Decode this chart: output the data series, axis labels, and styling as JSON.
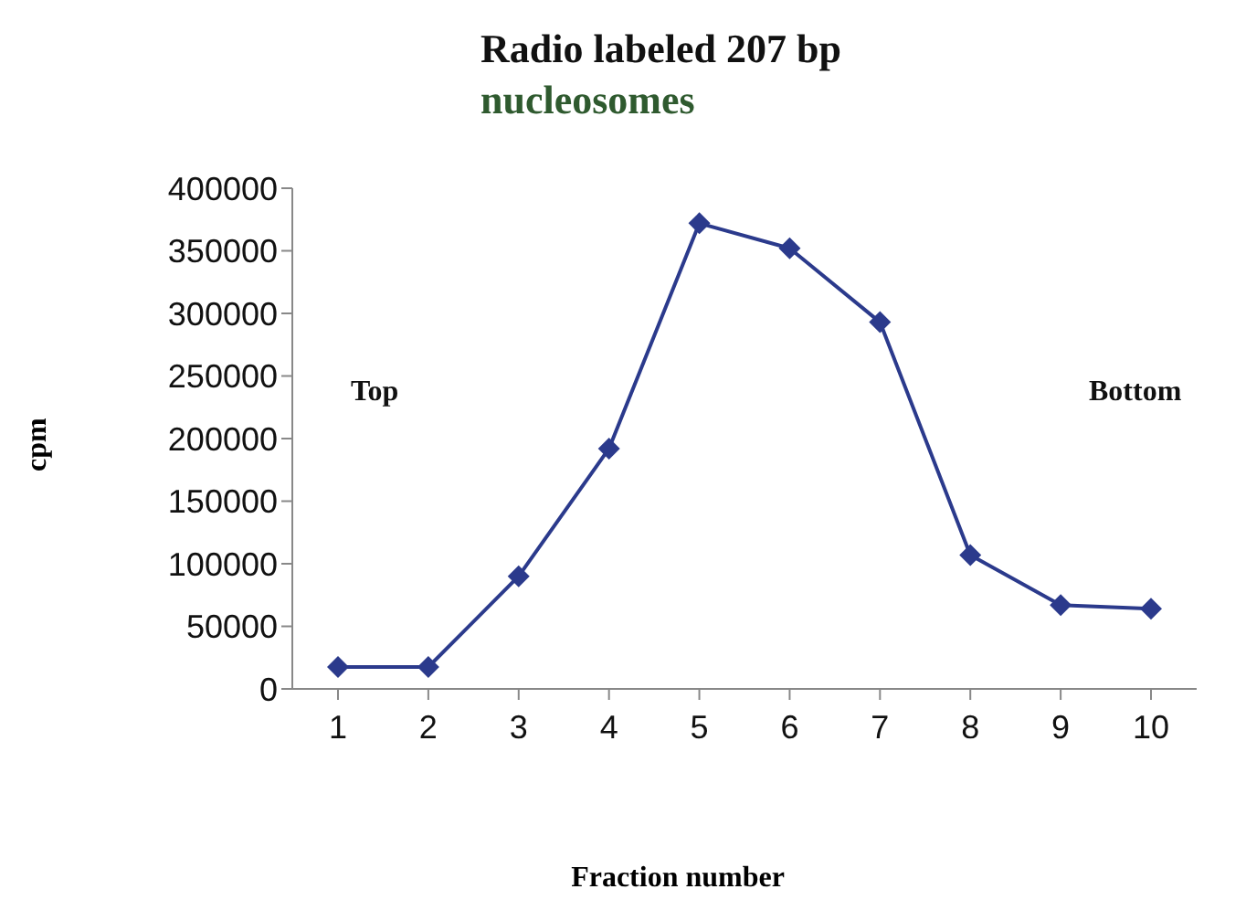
{
  "chart_data": {
    "type": "line",
    "title": "Radio labeled 207 bp",
    "subtitle": "nucleosomes",
    "xlabel": "Fraction number",
    "ylabel": "cpm",
    "categories": [
      "1",
      "2",
      "3",
      "4",
      "5",
      "6",
      "7",
      "8",
      "9",
      "10"
    ],
    "series": [
      {
        "color": "#2b3a8c",
        "values": [
          17500,
          17500,
          90000,
          192000,
          372000,
          352000,
          293000,
          107000,
          67000,
          64000
        ]
      }
    ],
    "ylim": [
      0,
      400000
    ],
    "yticks": [
      0,
      50000,
      100000,
      150000,
      200000,
      250000,
      300000,
      350000,
      400000
    ],
    "annotations": [
      "Top",
      "Bottom"
    ],
    "marker": "diamond",
    "line_style": "solid",
    "grid": false,
    "legend": false
  }
}
